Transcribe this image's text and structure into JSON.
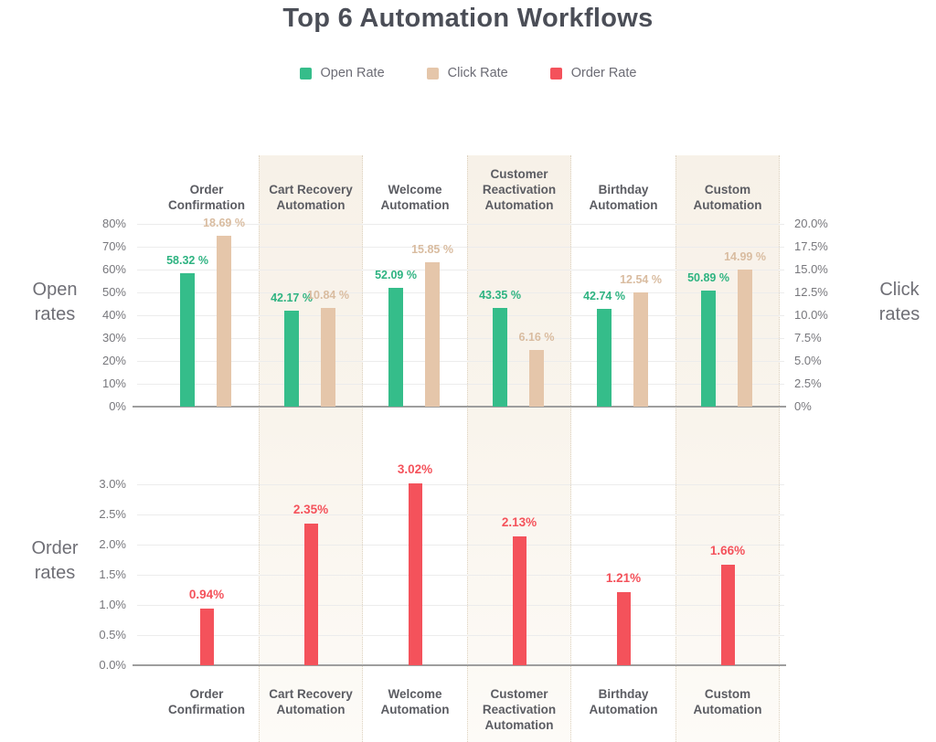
{
  "title": "Top 6 Automation Workflows",
  "legend": [
    {
      "label": "Open Rate",
      "color": "#35bd8a"
    },
    {
      "label": "Click Rate",
      "color": "#e5c6aa"
    },
    {
      "label": "Order Rate",
      "color": "#f4525b"
    }
  ],
  "categories_display": [
    "Order\nConfirmation",
    "Cart Recovery\nAutomation",
    "Welcome\nAutomation",
    "Customer\nReactivation\nAutomation",
    "Birthday\nAutomation",
    "Custom\nAutomation"
  ],
  "chart_data": [
    {
      "type": "bar",
      "categories": [
        "Order Confirmation",
        "Cart Recovery Automation",
        "Welcome Automation",
        "Customer Reactivation Automation",
        "Birthday Automation",
        "Custom Automation"
      ],
      "series": [
        {
          "name": "Open Rate",
          "axis": "left",
          "color": "#35bd8a",
          "values": [
            58.32,
            42.17,
            52.09,
            43.35,
            42.74,
            50.89
          ],
          "labels": [
            "58.32 %",
            "42.17 %",
            "52.09 %",
            "43.35 %",
            "42.74 %",
            "50.89 %"
          ]
        },
        {
          "name": "Click Rate",
          "axis": "right",
          "color": "#e5c6aa",
          "values": [
            18.69,
            10.84,
            15.85,
            6.16,
            12.54,
            14.99
          ],
          "labels": [
            "18.69 %",
            "10.84 %",
            "15.85 %",
            "6.16 %",
            "12.54 %",
            "14.99 %"
          ]
        }
      ],
      "left_axis": {
        "title": "Open\nrates",
        "min": 0,
        "max": 80,
        "ticks": [
          "80%",
          "70%",
          "60%",
          "50%",
          "40%",
          "30%",
          "20%",
          "10%",
          "0%"
        ]
      },
      "right_axis": {
        "title": "Click\nrates",
        "min": 0,
        "max": 20,
        "ticks": [
          "20.0%",
          "17.5%",
          "15.0%",
          "12.5%",
          "10.0%",
          "7.5%",
          "5.0%",
          "2.5%",
          "0%"
        ]
      },
      "grid": true,
      "legend_position": "top"
    },
    {
      "type": "bar",
      "categories": [
        "Order Confirmation",
        "Cart Recovery Automation",
        "Welcome Automation",
        "Customer Reactivation Automation",
        "Birthday Automation",
        "Custom Automation"
      ],
      "series": [
        {
          "name": "Order Rate",
          "axis": "left",
          "color": "#f4525b",
          "values": [
            0.94,
            2.35,
            3.02,
            2.13,
            1.21,
            1.66
          ],
          "labels": [
            "0.94%",
            "2.35%",
            "3.02%",
            "2.13%",
            "1.21%",
            "1.66%"
          ]
        }
      ],
      "left_axis": {
        "title": "Order\nrates",
        "min": 0,
        "max": 3,
        "ticks": [
          "3.0%",
          "2.5%",
          "2.0%",
          "1.5%",
          "1.0%",
          "0.5%",
          "0.0%"
        ]
      },
      "grid": true
    }
  ],
  "colors": {
    "stripe_border": "#ddd2c0",
    "grid": "#ececec",
    "baseline": "#9e9e9e",
    "axis_text": "#77777c",
    "axis_title_text": "#6f6f76",
    "category_text": "#5b5c62",
    "title_text": "#4b4e57",
    "legend_text": "#6c6c75",
    "open_value_label": "#2eb381",
    "click_value_label": "#d9bca0",
    "order_value_label": "#f4525b"
  }
}
